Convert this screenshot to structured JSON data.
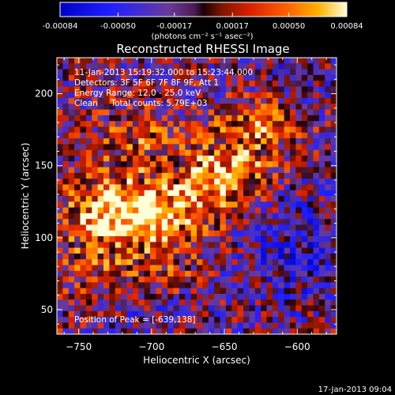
{
  "colorbar": {
    "ticks": [
      "-0.00084",
      "-0.00050",
      "-0.00017",
      "0.00017",
      "0.00050",
      "0.00084"
    ],
    "unit_label": "(photons cm⁻² s⁻¹ asec⁻²)",
    "vmin": -0.00084,
    "vmax": 0.00084
  },
  "chart_data": {
    "type": "heatmap",
    "title": "Reconstructed RHESSI Image",
    "xlabel": "Heliocentric X (arcsec)",
    "ylabel": "Heliocentric Y (arcsec)",
    "xlim": [
      -765,
      -573
    ],
    "ylim": [
      33,
      225
    ],
    "xticks": [
      -750,
      -700,
      -650,
      -600
    ],
    "yticks": [
      50,
      100,
      150,
      200
    ],
    "xtick_labels": [
      "−750",
      "−700",
      "−650",
      "−600"
    ],
    "ytick_labels": [
      "50",
      "100",
      "150",
      "200"
    ],
    "peak_position": [
      -639,
      138
    ],
    "annotations": [
      "11-Jan-2013 15:19:32.000 to 15:23:44.000",
      "Detectors: 3F 5F 6F 7F 8F 9F, Att 1",
      "Energy Range: 12.0 - 25.0 keV",
      "Clean     Total counts: 5.79E+03",
      "Position of Peak = [-639,138]"
    ]
  },
  "footer": {
    "timestamp": "17-Jan-2013 09:04"
  }
}
